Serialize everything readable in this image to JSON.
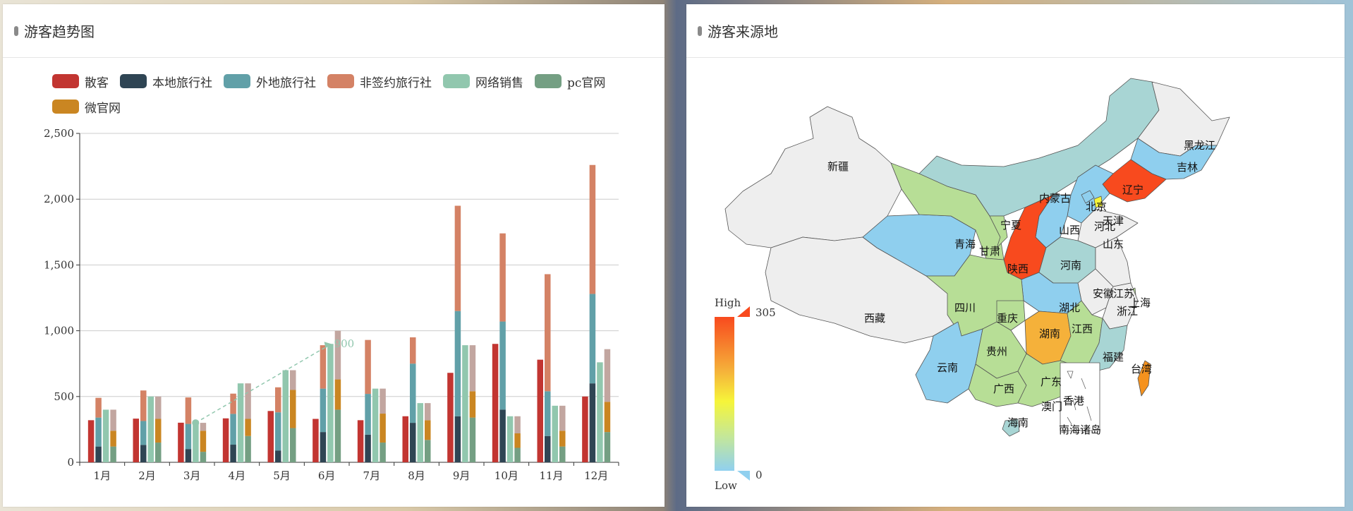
{
  "left_panel": {
    "title": "游客趋势图"
  },
  "right_panel": {
    "title": "游客来源地"
  },
  "colors": {
    "散客": "#c23531",
    "本地旅行社": "#2f4554",
    "外地旅行社": "#61a0a8",
    "非签约旅行社": "#d48265",
    "网络销售": "#91c7ae",
    "pc官网": "#749f83",
    "微官网": "#ca8622"
  },
  "chart_data": [
    {
      "type": "bar",
      "legend": [
        "散客",
        "本地旅行社",
        "外地旅行社",
        "非签约旅行社",
        "网络销售",
        "pc官网",
        "微官网"
      ],
      "categories": [
        "1月",
        "2月",
        "3月",
        "4月",
        "5月",
        "6月",
        "7月",
        "8月",
        "9月",
        "10月",
        "11月",
        "12月"
      ],
      "y_ticks": [
        "0",
        "500",
        "1,000",
        "1,500",
        "2,000",
        "2,500"
      ],
      "ylim": [
        0,
        2500
      ],
      "stacks": {
        "s1": [
          "散客"
        ],
        "s2": [
          "本地旅行社",
          "外地旅行社",
          "非签约旅行社"
        ],
        "s3": [
          "网络销售"
        ],
        "s4": [
          "pc官网",
          "微官网"
        ]
      },
      "series": [
        {
          "name": "散客",
          "values": [
            320,
            332,
            301,
            334,
            390,
            330,
            320,
            350,
            680,
            900,
            780,
            500
          ]
        },
        {
          "name": "本地旅行社",
          "values": [
            120,
            132,
            101,
            134,
            90,
            230,
            210,
            300,
            350,
            400,
            200,
            600
          ]
        },
        {
          "name": "外地旅行社",
          "values": [
            220,
            182,
            191,
            234,
            290,
            330,
            310,
            450,
            800,
            670,
            340,
            680
          ]
        },
        {
          "name": "非签约旅行社",
          "values": [
            150,
            232,
            201,
            154,
            190,
            330,
            410,
            200,
            800,
            670,
            890,
            980
          ]
        },
        {
          "name": "网络销售",
          "values": [
            400,
            500,
            300,
            600,
            700,
            900,
            560,
            450,
            890,
            350,
            430,
            760
          ]
        },
        {
          "name": "pc官网",
          "values": [
            120,
            150,
            80,
            200,
            260,
            400,
            150,
            170,
            340,
            110,
            120,
            230
          ]
        },
        {
          "name": "微官网",
          "values": [
            120,
            180,
            160,
            130,
            290,
            230,
            220,
            150,
            200,
            110,
            120,
            230
          ]
        },
        {
          "name": "pc官网-top",
          "values": [
            160,
            170,
            60,
            270,
            150,
            370,
            190,
            130,
            350,
            130,
            190,
            400
          ]
        }
      ],
      "annotation": {
        "label": "900",
        "from": "3月",
        "to": "6月",
        "from_value": 300,
        "to_value": 900
      }
    },
    {
      "type": "map",
      "visual_map": {
        "high_label": "High",
        "low_label": "Low",
        "max": "305",
        "min": "0"
      },
      "regions": [
        {
          "name": "新疆"
        },
        {
          "name": "西藏"
        },
        {
          "name": "内蒙古"
        },
        {
          "name": "黑龙江"
        },
        {
          "name": "吉林"
        },
        {
          "name": "辽宁"
        },
        {
          "name": "北京"
        },
        {
          "name": "天津"
        },
        {
          "name": "河北"
        },
        {
          "name": "山西"
        },
        {
          "name": "宁夏"
        },
        {
          "name": "青海"
        },
        {
          "name": "甘肃"
        },
        {
          "name": "陕西"
        },
        {
          "name": "河南"
        },
        {
          "name": "山东"
        },
        {
          "name": "安徽"
        },
        {
          "name": "江苏"
        },
        {
          "name": "上海"
        },
        {
          "name": "浙江"
        },
        {
          "name": "四川"
        },
        {
          "name": "重庆"
        },
        {
          "name": "湖北"
        },
        {
          "name": "湖南"
        },
        {
          "name": "江西"
        },
        {
          "name": "贵州"
        },
        {
          "name": "云南"
        },
        {
          "name": "福建"
        },
        {
          "name": "台湾"
        },
        {
          "name": "广西"
        },
        {
          "name": "广东"
        },
        {
          "name": "香港"
        },
        {
          "name": "澳门"
        },
        {
          "name": "海南"
        },
        {
          "name": "南海诸岛"
        }
      ]
    }
  ]
}
